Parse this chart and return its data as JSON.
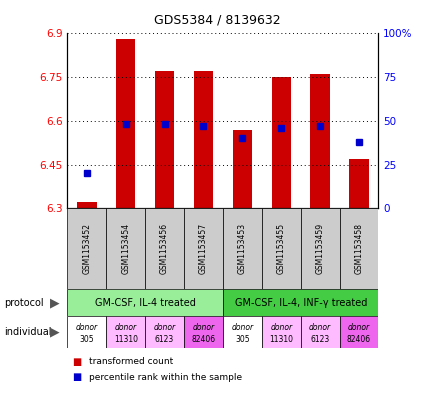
{
  "title": "GDS5384 / 8139632",
  "samples": [
    "GSM1153452",
    "GSM1153454",
    "GSM1153456",
    "GSM1153457",
    "GSM1153453",
    "GSM1153455",
    "GSM1153459",
    "GSM1153458"
  ],
  "transformed_counts": [
    6.32,
    6.88,
    6.77,
    6.77,
    6.57,
    6.75,
    6.76,
    6.47
  ],
  "percentile_ranks": [
    20,
    48,
    48,
    47,
    40,
    46,
    47,
    38
  ],
  "y_min": 6.3,
  "y_max": 6.9,
  "y_ticks": [
    6.3,
    6.45,
    6.6,
    6.75,
    6.9
  ],
  "right_y_ticks": [
    0,
    25,
    50,
    75,
    100
  ],
  "bar_color": "#cc0000",
  "dot_color": "#0000cc",
  "protocol_groups": [
    {
      "label": "GM-CSF, IL-4 treated",
      "start": 0,
      "end": 4,
      "color": "#99ee99"
    },
    {
      "label": "GM-CSF, IL-4, INF-γ treated",
      "start": 4,
      "end": 8,
      "color": "#44cc44"
    }
  ],
  "individual_colors": [
    "#ffffff",
    "#ffbbff",
    "#ffbbff",
    "#ee66ee",
    "#ffffff",
    "#ffbbff",
    "#ffbbff",
    "#ee66ee"
  ],
  "individual_labels": [
    "donor\n305",
    "donor\n11310",
    "donor\n6123",
    "donor\n82406",
    "donor\n305",
    "donor\n11310",
    "donor\n6123",
    "donor\n82406"
  ],
  "sample_bg_color": "#cccccc",
  "protocol_label": "protocol",
  "individual_label": "individual",
  "legend_bar": "transformed count",
  "legend_dot": "percentile rank within the sample",
  "bar_width": 0.5
}
